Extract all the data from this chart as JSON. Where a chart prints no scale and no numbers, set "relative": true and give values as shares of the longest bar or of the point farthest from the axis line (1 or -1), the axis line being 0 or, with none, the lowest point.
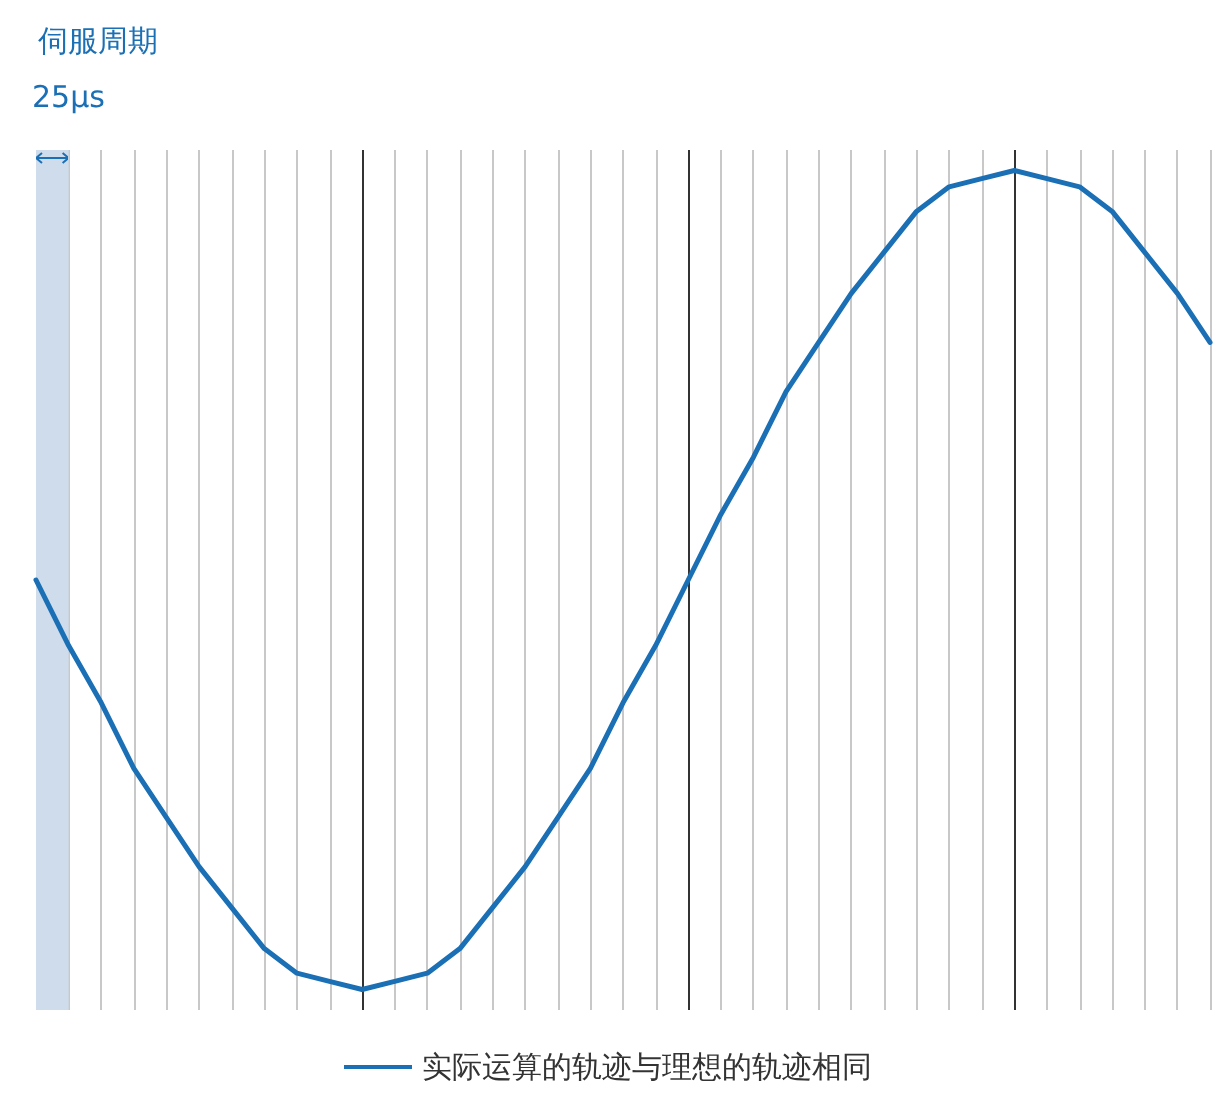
{
  "chart_data": {
    "type": "line",
    "title": "伺服周期",
    "relative": true,
    "categories": [
      null,
      null,
      null,
      null,
      null,
      null,
      null,
      null,
      null,
      null,
      null,
      null,
      null,
      null,
      null,
      null,
      null,
      null,
      null,
      null,
      null,
      null,
      null,
      null,
      null,
      null,
      null,
      null,
      null,
      null,
      null,
      null,
      null,
      null,
      null,
      null,
      null
    ],
    "series": [
      {
        "name": "实际运算的轨迹与理想的轨迹相同",
        "color": "#1a6fb5",
        "values": [
          0.5,
          0.42,
          0.35,
          0.27,
          0.21,
          0.15,
          0.1,
          0.05,
          0.02,
          0.01,
          0,
          0.01,
          0.02,
          0.05,
          0.1,
          0.15,
          0.21,
          0.27,
          0.35,
          0.42,
          0.5,
          0.58,
          0.65,
          0.73,
          0.79,
          0.85,
          0.9,
          0.95,
          0.98,
          0.99,
          1,
          0.99,
          0.98,
          0.95,
          0.9,
          0.85,
          0.79
        ]
      }
    ],
    "annotations": [
      "25μs"
    ],
    "grid": "x",
    "legend": "bottom",
    "marker": "none",
    "line_style": "solid"
  }
}
